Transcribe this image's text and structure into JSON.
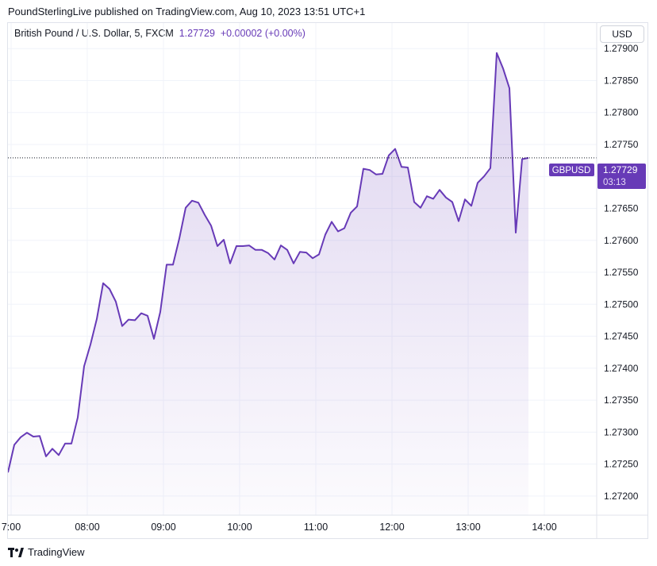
{
  "header": {
    "published": "PoundSterlingLive published on TradingView.com, Aug 10, 2023 13:51 UTC+1"
  },
  "symbol": {
    "name": "British Pound / U.S. Dollar, 5, FXCM",
    "price": "1.27729",
    "change": "+0.00002 (+0.00%)"
  },
  "currency_button": "USD",
  "price_tag": {
    "ticker": "GBPUSD",
    "price": "1.27729",
    "countdown": "03:13"
  },
  "footer": {
    "brand": "TradingView",
    "brand_icon": "tradingview-logo-icon"
  },
  "colors": {
    "line": "#673ab7",
    "tag_bg": "#673ab7",
    "grid": "#f0f3fa",
    "text": "#131722"
  },
  "chart_data": {
    "type": "area",
    "x_ticks": [
      "7:00",
      "08:00",
      "09:00",
      "10:00",
      "11:00",
      "12:00",
      "13:00",
      "14:00"
    ],
    "y_ticks": [
      "1.27200",
      "1.27250",
      "1.27300",
      "1.27350",
      "1.27400",
      "1.27450",
      "1.27500",
      "1.27550",
      "1.27600",
      "1.27650",
      "1.27700",
      "1.27750",
      "1.27800",
      "1.27850",
      "1.27900"
    ],
    "ylim": [
      1.2717,
      1.2794
    ],
    "x_start": "07:00",
    "interval_minutes": 5,
    "values": [
      1.27237,
      1.2728,
      1.27292,
      1.27299,
      1.27293,
      1.27294,
      1.27262,
      1.27274,
      1.27264,
      1.27282,
      1.27282,
      1.27323,
      1.27403,
      1.27437,
      1.27477,
      1.27533,
      1.27524,
      1.27504,
      1.27466,
      1.27476,
      1.27475,
      1.27486,
      1.27482,
      1.27446,
      1.27488,
      1.27562,
      1.27562,
      1.27603,
      1.27651,
      1.27662,
      1.27659,
      1.2764,
      1.27623,
      1.27591,
      1.27601,
      1.27564,
      1.27591,
      1.27591,
      1.27592,
      1.27585,
      1.27585,
      1.2758,
      1.2757,
      1.27592,
      1.27585,
      1.27564,
      1.27582,
      1.27581,
      1.27572,
      1.27578,
      1.27609,
      1.27629,
      1.27614,
      1.27619,
      1.27643,
      1.27653,
      1.27712,
      1.2771,
      1.27703,
      1.27704,
      1.27733,
      1.27743,
      1.27715,
      1.27714,
      1.2766,
      1.27651,
      1.27669,
      1.27665,
      1.27679,
      1.27667,
      1.2766,
      1.2763,
      1.27664,
      1.27654,
      1.2769,
      1.277,
      1.27713,
      1.27893,
      1.27869,
      1.27838,
      1.27612,
      1.27727,
      1.27729
    ],
    "last_value": 1.27729,
    "grid": true
  }
}
